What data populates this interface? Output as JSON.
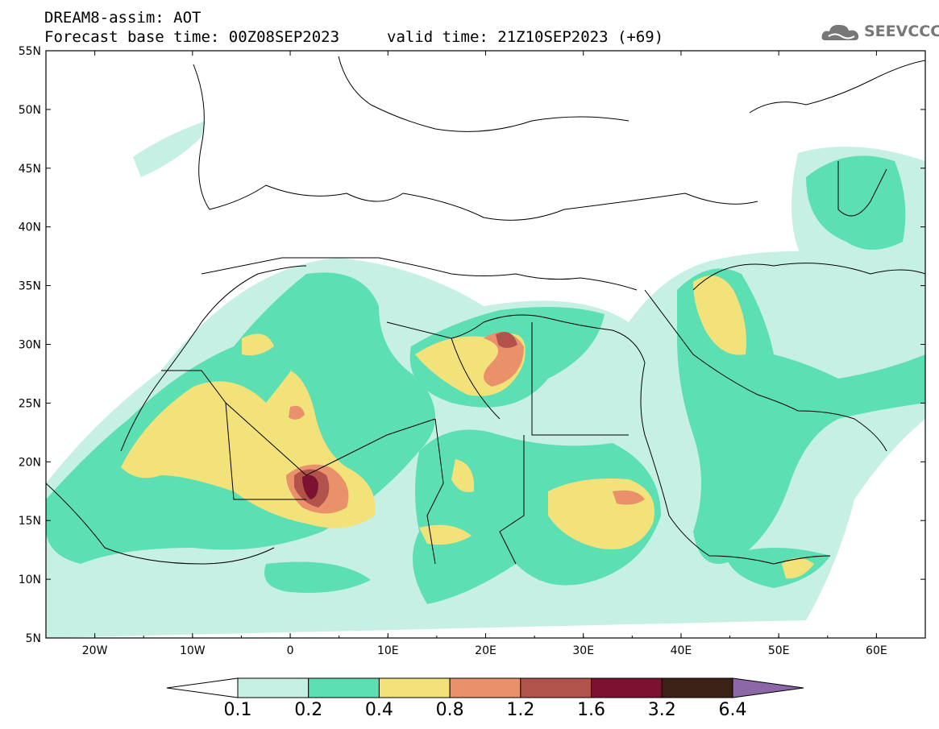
{
  "header": {
    "model_line": "DREAM8-assim: AOT",
    "base_time": "Forecast base time: 00Z08SEP2023",
    "valid_time": "valid time: 21Z10SEP2023 (+69)",
    "logo_text": "SEEVCCC"
  },
  "map": {
    "lat_labels": [
      "55N",
      "50N",
      "45N",
      "40N",
      "35N",
      "30N",
      "25N",
      "20N",
      "15N",
      "10N",
      "5N"
    ],
    "lon_labels": [
      "20W",
      "10W",
      "0",
      "10E",
      "20E",
      "30E",
      "40E",
      "50E",
      "60E"
    ],
    "lon_range": [
      -25,
      65
    ],
    "lat_range": [
      5,
      55
    ]
  },
  "colorbar": {
    "labels": [
      "0.1",
      "0.2",
      "0.4",
      "0.8",
      "1.2",
      "1.6",
      "3.2",
      "6.4"
    ],
    "colors": [
      "#ffffff",
      "#c6f0e4",
      "#5ddfb4",
      "#f3e27a",
      "#e9916a",
      "#b1534a",
      "#7d1230",
      "#3b2116",
      "#8d68a8"
    ]
  },
  "colors": {
    "land_outline": "#000000",
    "level_0.1": "#c6f0e4",
    "level_0.2": "#5ddfb4",
    "level_0.4": "#f3e27a",
    "level_0.8": "#e9916a",
    "level_1.2": "#b1534a",
    "level_1.6": "#7d1230"
  }
}
